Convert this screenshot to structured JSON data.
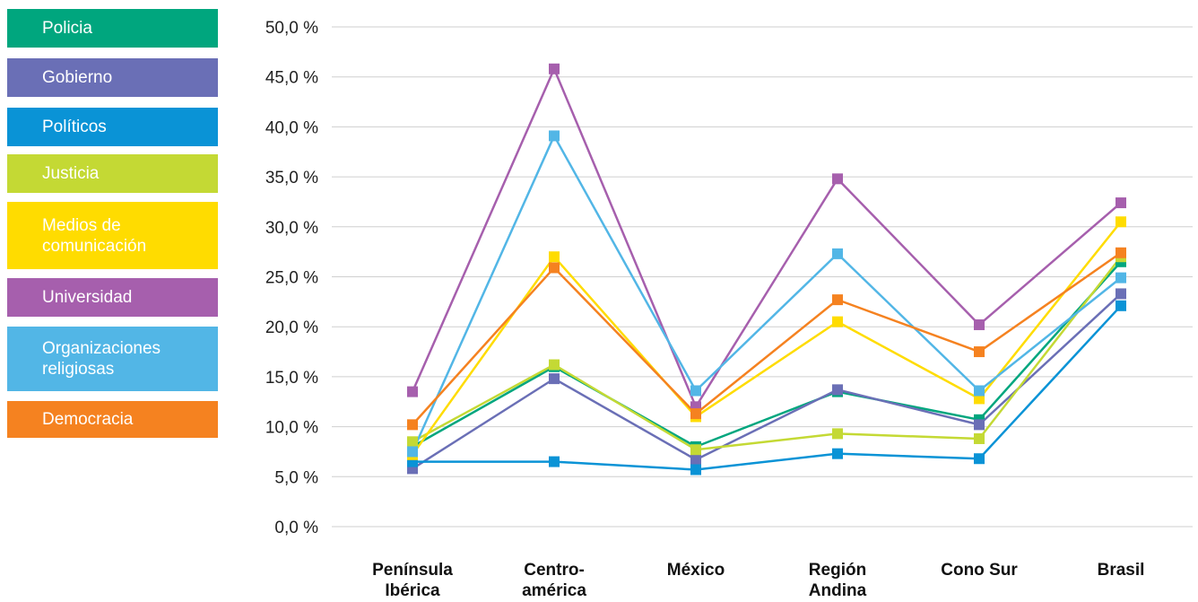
{
  "chart_data": {
    "type": "line",
    "categories": [
      "Península\nIbérica",
      "Centro-\namérica",
      "México",
      "Región\nAndina",
      "Cono Sur",
      "Brasil"
    ],
    "y_ticks": [
      "0,0 %",
      "5,0 %",
      "10,0 %",
      "15,0 %",
      "20,0 %",
      "25,0 %",
      "30,0 %",
      "35,0 %",
      "40,0 %",
      "45,0 %",
      "50,0 %"
    ],
    "ylim": [
      0,
      50
    ],
    "grid": true,
    "legend_position": "left",
    "series": [
      {
        "name": "Policia",
        "color": "#00a67e",
        "values": [
          8.0,
          16.0,
          8.0,
          13.5,
          10.7,
          26.5
        ]
      },
      {
        "name": "Gobierno",
        "color": "#6a6fb6",
        "values": [
          5.8,
          14.8,
          6.7,
          13.7,
          10.2,
          23.3
        ]
      },
      {
        "name": "Políticos",
        "color": "#0a93d6",
        "values": [
          6.5,
          6.5,
          5.7,
          7.3,
          6.8,
          22.1
        ]
      },
      {
        "name": "Justicia",
        "color": "#c4d934",
        "values": [
          8.5,
          16.2,
          7.7,
          9.3,
          8.8,
          27.0
        ]
      },
      {
        "name": "Medios de\ncomunicación",
        "color": "#ffdc00",
        "values": [
          7.2,
          27.0,
          11.0,
          20.5,
          12.8,
          30.5
        ]
      },
      {
        "name": "Universidad",
        "color": "#a65fad",
        "values": [
          13.5,
          45.8,
          12.0,
          34.8,
          20.2,
          32.4
        ]
      },
      {
        "name": "Organizaciones\nreligiosas",
        "color": "#52b6e6",
        "values": [
          7.5,
          39.1,
          13.6,
          27.3,
          13.6,
          24.9
        ]
      },
      {
        "name": "Democracia",
        "color": "#f58220",
        "values": [
          10.2,
          25.9,
          11.3,
          22.7,
          17.5,
          27.4
        ]
      }
    ]
  }
}
